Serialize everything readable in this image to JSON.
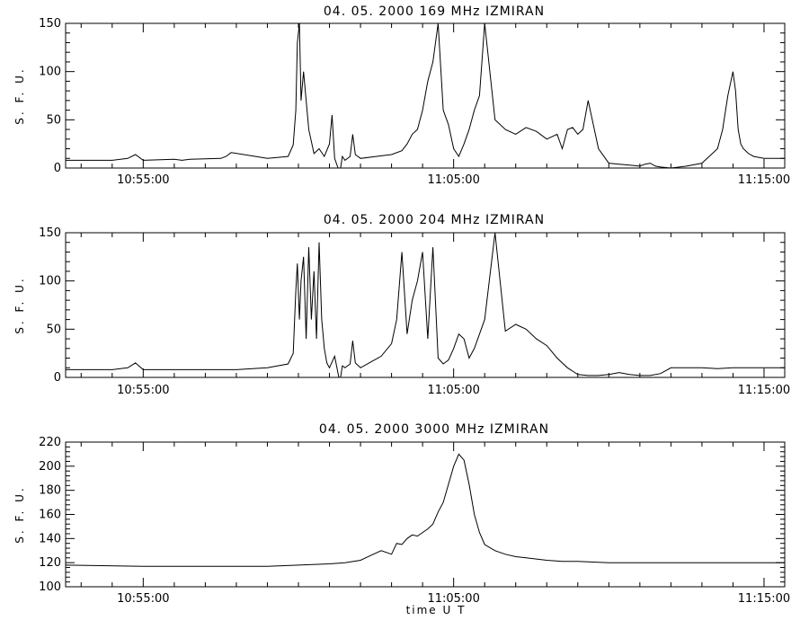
{
  "chart_data": [
    {
      "type": "line",
      "title": "04. 05. 2000   169 MHz   IZMIRAN",
      "ylabel": "S. F. U.",
      "xlabel": "",
      "ylim": [
        0,
        150
      ],
      "yticks": [
        0,
        50,
        100,
        150
      ],
      "xlim": [
        "10:52:30",
        "11:15:40"
      ],
      "xticks": [
        "10:55:00",
        "11:05:00",
        "11:15:00"
      ],
      "series": [
        {
          "x": [
            "10:52:30",
            "10:54:00",
            "10:54:30",
            "10:54:45",
            "10:55:00",
            "10:56:00",
            "10:56:15",
            "10:56:30",
            "10:57:30",
            "10:57:40",
            "10:57:50",
            "10:59:00",
            "10:59:40",
            "10:59:50",
            "10:59:55",
            "10:59:58",
            "11:00:02",
            "11:00:05",
            "11:00:10",
            "11:00:20",
            "11:00:30",
            "11:00:40",
            "11:00:50",
            "11:01:00",
            "11:01:05",
            "11:01:10",
            "11:01:20",
            "11:01:25",
            "11:01:30",
            "11:01:40",
            "11:01:45",
            "11:01:50",
            "11:02:00",
            "11:02:30",
            "11:03:00",
            "11:03:20",
            "11:03:30",
            "11:03:40",
            "11:03:50",
            "11:04:00",
            "11:04:10",
            "11:04:20",
            "11:04:30",
            "11:04:40",
            "11:04:50",
            "11:05:00",
            "11:05:10",
            "11:05:20",
            "11:05:30",
            "11:05:40",
            "11:05:50",
            "11:06:00",
            "11:06:20",
            "11:06:40",
            "11:07:00",
            "11:07:20",
            "11:07:40",
            "11:08:00",
            "11:08:20",
            "11:08:30",
            "11:08:40",
            "11:08:50",
            "11:09:00",
            "11:09:10",
            "11:09:20",
            "11:09:40",
            "11:10:00",
            "11:10:20",
            "11:10:40",
            "11:11:00",
            "11:11:10",
            "11:11:20",
            "11:11:30",
            "11:11:40",
            "11:12:00",
            "11:12:30",
            "11:13:00",
            "11:13:30",
            "11:13:40",
            "11:13:50",
            "11:14:00",
            "11:14:05",
            "11:14:10",
            "11:14:15",
            "11:14:20",
            "11:14:30",
            "11:14:40",
            "11:15:00",
            "11:15:40"
          ],
          "values": [
            8,
            8,
            10,
            14,
            8,
            9,
            8,
            9,
            10,
            12,
            16,
            10,
            12,
            24,
            60,
            130,
            150,
            70,
            100,
            40,
            15,
            20,
            12,
            25,
            55,
            10,
            -5,
            12,
            8,
            12,
            35,
            14,
            10,
            12,
            14,
            18,
            25,
            35,
            40,
            60,
            90,
            110,
            150,
            60,
            45,
            20,
            12,
            25,
            40,
            60,
            75,
            150,
            50,
            40,
            35,
            42,
            38,
            30,
            35,
            20,
            40,
            42,
            35,
            40,
            70,
            20,
            5,
            4,
            3,
            2,
            4,
            5,
            2,
            1,
            0,
            2,
            5,
            20,
            40,
            75,
            100,
            80,
            40,
            25,
            20,
            15,
            12,
            10,
            10
          ]
        }
      ]
    },
    {
      "type": "line",
      "title": "04. 05. 2000   204 MHz   IZMIRAN",
      "ylabel": "S. F. U.",
      "xlabel": "",
      "ylim": [
        0,
        150
      ],
      "yticks": [
        0,
        50,
        100,
        150
      ],
      "xlim": [
        "10:52:30",
        "11:15:40"
      ],
      "xticks": [
        "10:55:00",
        "11:05:00",
        "11:15:00"
      ],
      "series": [
        {
          "x": [
            "10:52:30",
            "10:54:00",
            "10:54:30",
            "10:54:45",
            "10:55:00",
            "10:56:00",
            "10:57:00",
            "10:58:00",
            "10:59:00",
            "10:59:40",
            "10:59:50",
            "10:59:55",
            "10:59:58",
            "11:00:02",
            "11:00:05",
            "11:00:10",
            "11:00:15",
            "11:00:20",
            "11:00:25",
            "11:00:30",
            "11:00:35",
            "11:00:40",
            "11:00:45",
            "11:00:50",
            "11:00:55",
            "11:01:00",
            "11:01:10",
            "11:01:20",
            "11:01:25",
            "11:01:30",
            "11:01:40",
            "11:01:45",
            "11:01:50",
            "11:02:00",
            "11:02:20",
            "11:02:40",
            "11:03:00",
            "11:03:10",
            "11:03:20",
            "11:03:30",
            "11:03:40",
            "11:03:50",
            "11:04:00",
            "11:04:10",
            "11:04:20",
            "11:04:30",
            "11:04:40",
            "11:04:50",
            "11:05:00",
            "11:05:10",
            "11:05:20",
            "11:05:30",
            "11:05:40",
            "11:06:00",
            "11:06:20",
            "11:06:40",
            "11:07:00",
            "11:07:20",
            "11:07:40",
            "11:08:00",
            "11:08:20",
            "11:08:40",
            "11:09:00",
            "11:09:20",
            "11:09:40",
            "11:10:00",
            "11:10:20",
            "11:10:40",
            "11:11:00",
            "11:11:20",
            "11:11:40",
            "11:12:00",
            "11:12:30",
            "11:13:00",
            "11:13:30",
            "11:14:00",
            "11:14:30",
            "11:15:00",
            "11:15:40"
          ],
          "values": [
            8,
            8,
            10,
            15,
            8,
            8,
            8,
            8,
            10,
            14,
            25,
            90,
            118,
            60,
            100,
            125,
            40,
            135,
            60,
            110,
            40,
            140,
            60,
            30,
            15,
            10,
            22,
            -5,
            12,
            10,
            14,
            38,
            15,
            10,
            16,
            22,
            35,
            60,
            130,
            45,
            80,
            100,
            130,
            40,
            135,
            20,
            14,
            18,
            30,
            45,
            40,
            20,
            30,
            60,
            150,
            48,
            55,
            50,
            40,
            33,
            20,
            10,
            3,
            2,
            2,
            3,
            5,
            3,
            2,
            2,
            4,
            10,
            10,
            10,
            9,
            10,
            10,
            10,
            10
          ]
        }
      ]
    },
    {
      "type": "line",
      "title": "04. 05. 2000   3000 MHz   IZMIRAN",
      "ylabel": "S. F. U.",
      "xlabel": "time  U T",
      "ylim": [
        100,
        220
      ],
      "yticks": [
        100,
        120,
        140,
        160,
        180,
        200,
        220
      ],
      "xlim": [
        "10:52:30",
        "11:15:40"
      ],
      "xticks": [
        "10:55:00",
        "11:05:00",
        "11:15:00"
      ],
      "series": [
        {
          "x": [
            "10:52:30",
            "10:55:00",
            "10:57:00",
            "10:59:00",
            "11:00:00",
            "11:01:00",
            "11:01:30",
            "11:02:00",
            "11:02:20",
            "11:02:40",
            "11:03:00",
            "11:03:10",
            "11:03:20",
            "11:03:30",
            "11:03:40",
            "11:03:50",
            "11:04:00",
            "11:04:10",
            "11:04:20",
            "11:04:30",
            "11:04:40",
            "11:04:50",
            "11:05:00",
            "11:05:10",
            "11:05:20",
            "11:05:30",
            "11:05:40",
            "11:05:50",
            "11:06:00",
            "11:06:20",
            "11:06:40",
            "11:07:00",
            "11:07:20",
            "11:07:40",
            "11:08:00",
            "11:08:30",
            "11:09:00",
            "11:10:00",
            "11:11:00",
            "11:12:00",
            "11:13:00",
            "11:14:00",
            "11:15:00",
            "11:15:40"
          ],
          "values": [
            118,
            117,
            117,
            117,
            118,
            119,
            120,
            122,
            126,
            130,
            127,
            136,
            135,
            140,
            143,
            142,
            145,
            148,
            152,
            162,
            170,
            185,
            200,
            210,
            205,
            185,
            160,
            145,
            135,
            130,
            127,
            125,
            124,
            123,
            122,
            121,
            121,
            120,
            120,
            120,
            120,
            120,
            120,
            120
          ]
        }
      ]
    }
  ]
}
